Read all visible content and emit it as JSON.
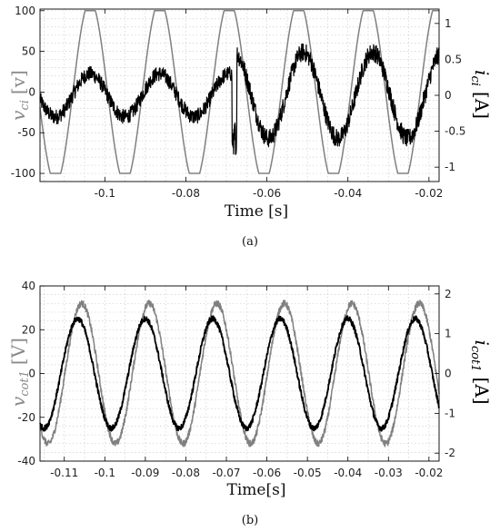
{
  "chart_data": [
    {
      "type": "line",
      "panel_label": "(a)",
      "xlabel": "Time [s]",
      "ylabel_left": "v_ci [v]",
      "ylabel_left_text": {
        "base": "v",
        "sub": "ci",
        "unit": "[v]"
      },
      "ylabel_right_text": {
        "base": "i",
        "sub": "ci",
        "unit": "[A]"
      },
      "xlim": [
        -0.116,
        -0.0175
      ],
      "ylim_left": [
        -110,
        102
      ],
      "ylim_right": [
        -1.2,
        1.2
      ],
      "x_ticks": [
        -0.1,
        -0.08,
        -0.06,
        -0.04,
        -0.02
      ],
      "x_tick_labels": [
        "-0.1",
        "-0.08",
        "-0.06",
        "-0.04",
        "-0.02"
      ],
      "y_ticks_left": [
        -100,
        -50,
        0,
        50,
        100
      ],
      "y_tick_labels_left": [
        "-100",
        "-50",
        "0",
        "50",
        "100"
      ],
      "y_ticks_right": [
        -1,
        -0.5,
        0,
        0.5,
        1
      ],
      "y_tick_labels_right": [
        "-1",
        "-0.5",
        "0",
        "0.5",
        "1"
      ],
      "grid": true,
      "series": [
        {
          "axis": "left",
          "color": "#808080",
          "shape": "trapezoid",
          "frequency_hz": 58.3,
          "amplitude": 100,
          "peaks_at_x": [
            -0.1036,
            -0.0865,
            -0.0693,
            -0.0522,
            -0.035,
            -0.0179
          ]
        },
        {
          "axis": "right",
          "color": "#000000",
          "noisy": true,
          "segments": [
            {
              "x_start": -0.116,
              "x_end": -0.068,
              "amplitude": 0.3,
              "phase_deg": -15
            },
            {
              "x_start": -0.068,
              "x_end": -0.0175,
              "amplitude": 0.6,
              "phase_deg": -40
            }
          ],
          "transient_x": -0.068,
          "transient_min": -0.68
        }
      ]
    },
    {
      "type": "line",
      "panel_label": "(b)",
      "xlabel": "Time[s]",
      "ylabel_left_text": {
        "base": "v",
        "sub": "cot1",
        "unit": "[V]"
      },
      "ylabel_right_text": {
        "base": "i",
        "sub": "cot1",
        "unit": "[A]"
      },
      "xlim": [
        -0.116,
        -0.0175
      ],
      "ylim_left": [
        -40,
        40
      ],
      "ylim_right": [
        -2.2,
        2.2
      ],
      "x_ticks": [
        -0.11,
        -0.1,
        -0.09,
        -0.08,
        -0.07,
        -0.06,
        -0.05,
        -0.04,
        -0.03,
        -0.02
      ],
      "x_tick_labels": [
        "-0.11",
        "-0.1",
        "-0.09",
        "-0.08",
        "-0.07",
        "-0.06",
        "-0.05",
        "-0.04",
        "-0.03",
        "-0.02"
      ],
      "y_ticks_left": [
        -40,
        -20,
        0,
        20,
        40
      ],
      "y_tick_labels_left": [
        "-40",
        "-20",
        "0",
        "20",
        "40"
      ],
      "y_ticks_right": [
        -2,
        -1,
        0,
        1,
        2
      ],
      "y_tick_labels_right": [
        "-2",
        "-1",
        "0",
        "1",
        "2"
      ],
      "grid": true,
      "series": [
        {
          "axis": "left",
          "color": "#808080",
          "noisy": true,
          "frequency_hz": 60,
          "amplitude": 32,
          "peaks_at_x": [
            -0.1057,
            -0.089,
            -0.0723,
            -0.0557,
            -0.039,
            -0.0223
          ]
        },
        {
          "axis": "left",
          "color": "#000000",
          "noisy": true,
          "bold": true,
          "frequency_hz": 60,
          "amplitude": 25,
          "peaks_at_x": [
            -0.1067,
            -0.09,
            -0.0733,
            -0.0567,
            -0.04,
            -0.0233
          ]
        }
      ]
    }
  ]
}
